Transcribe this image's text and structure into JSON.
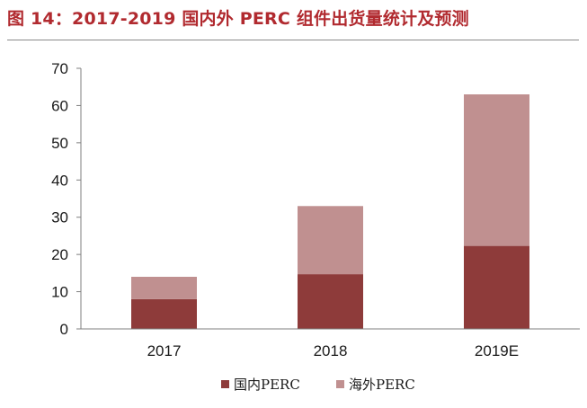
{
  "title": "图 14：2017-2019 国内外 PERC 组件出货量统计及预测",
  "colors": {
    "title": "#b12a2f",
    "domestic": "#8e3b3a",
    "overseas": "#c09090"
  },
  "chart_data": {
    "type": "bar",
    "stacked": true,
    "categories": [
      "2017",
      "2018",
      "2019E"
    ],
    "series": [
      {
        "name": "国内PERC",
        "values": [
          8,
          14.7,
          22.3
        ]
      },
      {
        "name": "海外PERC",
        "values": [
          6,
          18.3,
          40.7
        ]
      }
    ],
    "title": "",
    "xlabel": "",
    "ylabel": "",
    "ylim": [
      0,
      70
    ],
    "yticks": [
      0,
      10,
      20,
      30,
      40,
      50,
      60,
      70
    ],
    "grid": false,
    "legend": "bottom"
  }
}
